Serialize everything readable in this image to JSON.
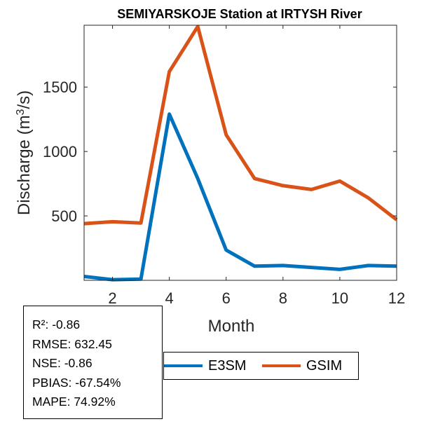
{
  "chart_data": {
    "type": "line",
    "title": "SEMIYARSKOJE  Station at  IRTYSH  River",
    "xlabel": "Month",
    "ylabel_main": "Discharge (m",
    "ylabel_sup": "3",
    "ylabel_tail": "/s)",
    "xlim": [
      1,
      12
    ],
    "ylim": [
      0,
      1980
    ],
    "xticks": [
      2,
      4,
      6,
      8,
      10,
      12
    ],
    "yticks": [
      500,
      1000,
      1500
    ],
    "x": [
      1,
      2,
      3,
      4,
      5,
      6,
      7,
      8,
      9,
      10,
      11,
      12
    ],
    "series": [
      {
        "name": "E3SM",
        "color": "#0072BD",
        "values": [
          30,
          5,
          10,
          1290,
          790,
          235,
          110,
          115,
          100,
          85,
          115,
          110
        ]
      },
      {
        "name": "GSIM",
        "color": "#D95319",
        "values": [
          440,
          455,
          445,
          1620,
          1970,
          1130,
          790,
          735,
          705,
          770,
          640,
          470
        ]
      }
    ],
    "legend_placement": "bottom-center"
  },
  "stats": {
    "r2": "R²: -0.86",
    "rmse": "RMSE: 632.45",
    "nse": "NSE: -0.86",
    "pbias": "PBIAS: -67.54%",
    "mape": "MAPE: 74.92%"
  }
}
